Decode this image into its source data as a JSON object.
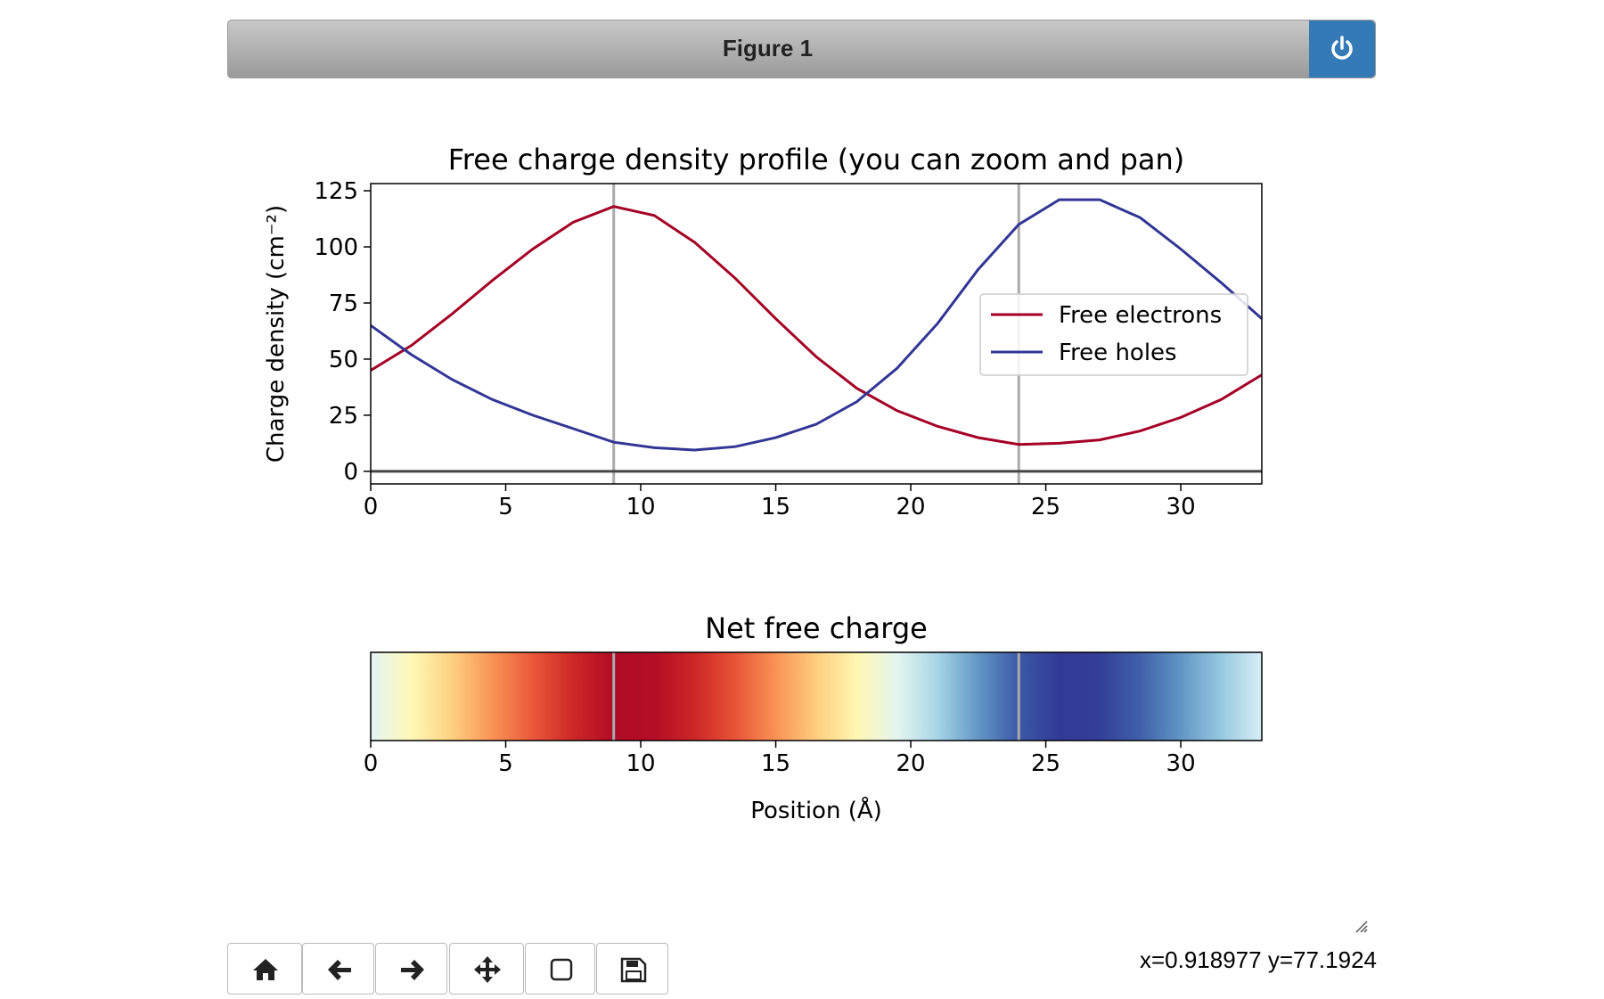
{
  "header": {
    "title": "Figure 1"
  },
  "chart_data": [
    {
      "type": "line",
      "title": "Free charge density profile (you can zoom and pan)",
      "ylabel": "Charge density (cm⁻²)",
      "x": [
        0,
        1.5,
        3,
        4.5,
        6,
        7.5,
        9,
        10.5,
        12,
        13.5,
        15,
        16.5,
        18,
        19.5,
        21,
        22.5,
        24,
        25.5,
        27,
        28.5,
        30,
        31.5,
        33
      ],
      "series": [
        {
          "name": "Free electrons",
          "color": "#a50026",
          "values": [
            45,
            56,
            70,
            85,
            99,
            111,
            118,
            114,
            102,
            86,
            68,
            51,
            37,
            27,
            20,
            15,
            12,
            12.5,
            14,
            18,
            24,
            32,
            43
          ]
        },
        {
          "name": "Free holes",
          "color": "#313695",
          "values": [
            65,
            52,
            41,
            32,
            25,
            19,
            13,
            10.5,
            9.5,
            11,
            15,
            21,
            31,
            46,
            66,
            90,
            110,
            121,
            121,
            113,
            99,
            84,
            68
          ]
        }
      ],
      "xlim": [
        0,
        33
      ],
      "ylim": [
        -5.6,
        128.2
      ],
      "xticks": [
        0,
        5,
        10,
        15,
        20,
        25,
        30
      ],
      "yticks": [
        0,
        25,
        50,
        75,
        100,
        125
      ],
      "vlines": [
        9,
        24
      ],
      "hline": 0,
      "legend": "right"
    },
    {
      "type": "heatmap",
      "title": "Net free charge",
      "xlabel": "Position (Å)",
      "x": [
        0,
        1.5,
        3,
        4.5,
        6,
        7.5,
        9,
        10.5,
        12,
        13.5,
        15,
        16.5,
        18,
        19.5,
        21,
        22.5,
        24,
        25.5,
        27,
        28.5,
        30,
        31.5,
        33
      ],
      "values": [
        20,
        -4,
        -29,
        -53,
        -74,
        -92,
        -105,
        -103.5,
        -92.5,
        -75,
        -53,
        -30,
        -6,
        19,
        46,
        75,
        98,
        108.5,
        107,
        95,
        75,
        52,
        25
      ],
      "clim": [
        -110,
        110
      ],
      "colormap": [
        "#a50026",
        "#d73027",
        "#f46d43",
        "#fdae61",
        "#fee090",
        "#ffffbf",
        "#e0f3f8",
        "#abd9e9",
        "#74add1",
        "#4575b4",
        "#313695"
      ],
      "xlim": [
        0,
        33
      ],
      "xticks": [
        0,
        5,
        10,
        15,
        20,
        25,
        30
      ],
      "vlines": [
        9,
        24
      ]
    }
  ],
  "status": "x=0.918977 y=77.1924"
}
